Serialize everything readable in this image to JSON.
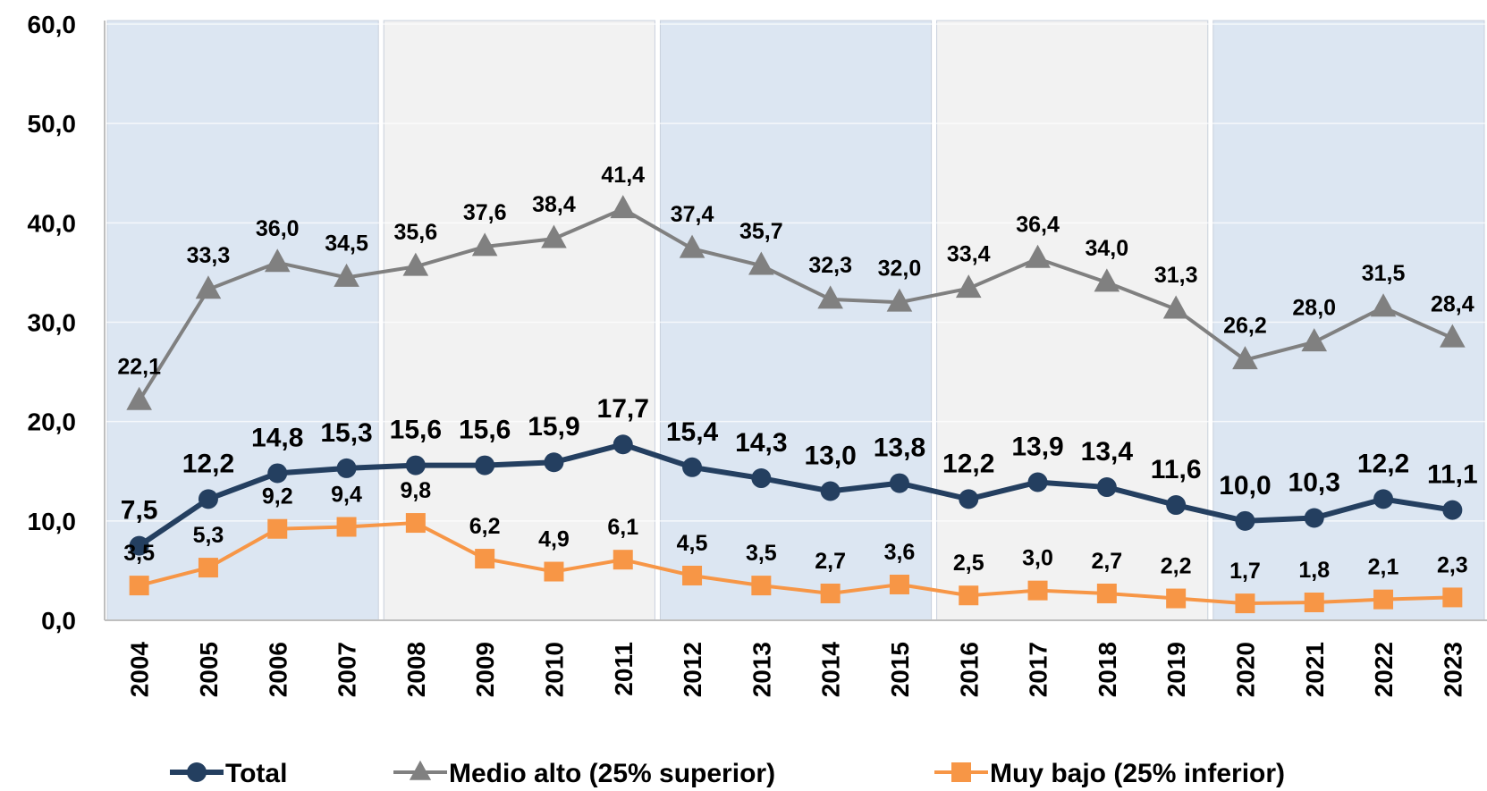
{
  "chart_data": {
    "type": "line",
    "categories": [
      "2004",
      "2005",
      "2006",
      "2007",
      "2008",
      "2009",
      "2010",
      "2011",
      "2012",
      "2013",
      "2014",
      "2015",
      "2016",
      "2017",
      "2018",
      "2019",
      "2020",
      "2021",
      "2022",
      "2023"
    ],
    "ylim": [
      0,
      60
    ],
    "yticks": [
      {
        "value": 0,
        "label": "0,0"
      },
      {
        "value": 10,
        "label": "10,0"
      },
      {
        "value": 20,
        "label": "20,0"
      },
      {
        "value": 30,
        "label": "30,0"
      },
      {
        "value": 40,
        "label": "40,0"
      },
      {
        "value": 50,
        "label": "50,0"
      },
      {
        "value": 60,
        "label": "60,0"
      }
    ],
    "grid": true,
    "legend": "bottom",
    "series": [
      {
        "name": "Total",
        "color": "#243f60",
        "marker": "circle",
        "values": [
          7.5,
          12.2,
          14.8,
          15.3,
          15.6,
          15.6,
          15.9,
          17.7,
          15.4,
          14.3,
          13.0,
          13.8,
          12.2,
          13.9,
          13.4,
          11.6,
          10.0,
          10.3,
          12.2,
          11.1
        ],
        "value_labels": [
          "7,5",
          "12,2",
          "14,8",
          "15,3",
          "15,6",
          "15,6",
          "15,9",
          "17,7",
          "15,4",
          "14,3",
          "13,0",
          "13,8",
          "12,2",
          "13,9",
          "13,4",
          "11,6",
          "10,0",
          "10,3",
          "12,2",
          "11,1"
        ]
      },
      {
        "name": "Medio alto (25% superior)",
        "color": "#808080",
        "marker": "triangle",
        "values": [
          22.1,
          33.3,
          36.0,
          34.5,
          35.6,
          37.6,
          38.4,
          41.4,
          37.4,
          35.7,
          32.3,
          32.0,
          33.4,
          36.4,
          34.0,
          31.3,
          26.2,
          28.0,
          31.5,
          28.4
        ],
        "value_labels": [
          "22,1",
          "33,3",
          "36,0",
          "34,5",
          "35,6",
          "37,6",
          "38,4",
          "41,4",
          "37,4",
          "35,7",
          "32,3",
          "32,0",
          "33,4",
          "36,4",
          "34,0",
          "31,3",
          "26,2",
          "28,0",
          "31,5",
          "28,4"
        ]
      },
      {
        "name": "Muy bajo (25% inferior)",
        "color": "#f79646",
        "marker": "square",
        "values": [
          3.5,
          5.3,
          9.2,
          9.4,
          9.8,
          6.2,
          4.9,
          6.1,
          4.5,
          3.5,
          2.7,
          3.6,
          2.5,
          3.0,
          2.7,
          2.2,
          1.7,
          1.8,
          2.1,
          2.3
        ],
        "value_labels": [
          "3,5",
          "5,3",
          "9,2",
          "9,4",
          "9,8",
          "6,2",
          "4,9",
          "6,1",
          "4,5",
          "3,5",
          "2,7",
          "3,6",
          "2,5",
          "3,0",
          "2,7",
          "2,2",
          "1,7",
          "1,8",
          "2,1",
          "2,3"
        ]
      }
    ]
  }
}
